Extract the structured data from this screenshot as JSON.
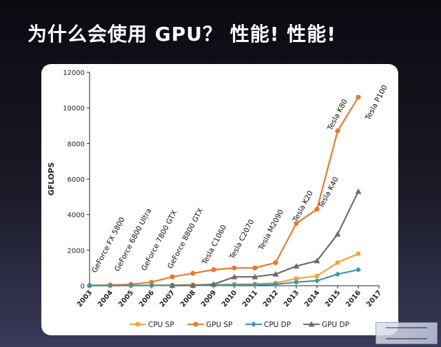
{
  "slide": {
    "title": "为什么会使用 GPU？ 性能! 性能!"
  },
  "chart_data": {
    "type": "line",
    "title": "",
    "xlabel": "",
    "ylabel": "GFLOPS",
    "ylim": [
      0,
      12000
    ],
    "yticks": [
      "0",
      "2000",
      "4000",
      "6000",
      "8000",
      "10000",
      "12000"
    ],
    "ytick_values": [
      0,
      2000,
      4000,
      6000,
      8000,
      10000,
      12000
    ],
    "xticks": [
      "2003",
      "2004",
      "2005",
      "2006",
      "2007",
      "2008",
      "2009",
      "2010",
      "2011",
      "2012",
      "2013",
      "2014",
      "2015",
      "2016",
      "2017"
    ],
    "xlim": [
      2003,
      2017
    ],
    "grid": false,
    "legend_position": "bottom",
    "series": [
      {
        "name": "CPU SP",
        "color": "#f5a236",
        "marker": "square",
        "x": [
          2003,
          2004,
          2005,
          2006,
          2007,
          2008,
          2009,
          2010,
          2011,
          2012,
          2013,
          2014,
          2015,
          2016
        ],
        "y": [
          10,
          15,
          20,
          30,
          40,
          50,
          60,
          80,
          100,
          150,
          400,
          550,
          1300,
          1800
        ]
      },
      {
        "name": "GPU SP",
        "color": "#e9792a",
        "marker": "circle",
        "x": [
          2003,
          2004,
          2005,
          2006,
          2007,
          2008,
          2009,
          2010,
          2011,
          2012,
          2013,
          2014,
          2015,
          2016
        ],
        "y": [
          20,
          40,
          80,
          200,
          500,
          700,
          900,
          1000,
          1000,
          1300,
          3500,
          4300,
          8700,
          10600
        ]
      },
      {
        "name": "CPU DP",
        "color": "#3a97b2",
        "marker": "diamond",
        "x": [
          2003,
          2004,
          2005,
          2006,
          2007,
          2008,
          2009,
          2010,
          2011,
          2012,
          2013,
          2014,
          2015,
          2016
        ],
        "y": [
          5,
          8,
          10,
          15,
          20,
          25,
          30,
          40,
          50,
          80,
          200,
          280,
          650,
          900
        ]
      },
      {
        "name": "GPU DP",
        "color": "#6c6c6c",
        "marker": "triangle",
        "x": [
          2007,
          2008,
          2009,
          2010,
          2011,
          2012,
          2013,
          2014,
          2015,
          2016
        ],
        "y": [
          10,
          20,
          80,
          500,
          500,
          650,
          1100,
          1400,
          2900,
          5300
        ]
      }
    ],
    "annotations": [
      {
        "text": "GeForce FX 5800",
        "x": 2003.4
      },
      {
        "text": "GeForce 6800 Ultra",
        "x": 2004.5
      },
      {
        "text": "GeForce 7800 GTX",
        "x": 2005.5
      },
      {
        "text": "GeForce 8800 GTX",
        "x": 2006.5
      },
      {
        "text": "Tesla C1060",
        "x": 2008.1
      },
      {
        "text": "Tesla C2070",
        "x": 2009.2
      },
      {
        "text": "Tesla M2090",
        "x": 2010.1
      },
      {
        "text": "Tesla K20",
        "x": 2011.5
      },
      {
        "text": "Tesla K40",
        "x": 2012.4
      },
      {
        "text": "Tesla K80",
        "x": 2014.3
      },
      {
        "text": "Tesla P100",
        "x": 2015.3
      }
    ]
  }
}
